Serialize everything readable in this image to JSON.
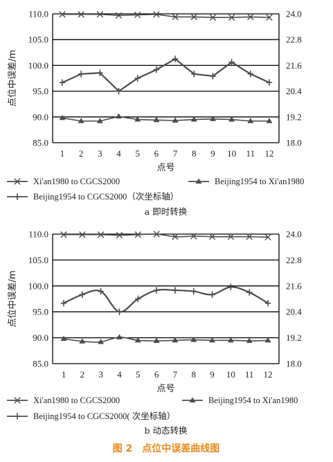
{
  "colors": {
    "line": "#4a4a4a",
    "grid": "#000000",
    "caption": "#e8891d"
  },
  "chart_data": [
    {
      "type": "line",
      "subtitle": "a 即时转换",
      "xlabel": "点号",
      "ylabel": "点位中误差/m",
      "categories": [
        "1",
        "2",
        "3",
        "4",
        "5",
        "6",
        "7",
        "8",
        "9",
        "10",
        "11",
        "12"
      ],
      "ylim": [
        85.0,
        110.0
      ],
      "y2lim": [
        18.0,
        24.0
      ],
      "yticks": [
        "85.0",
        "90.0",
        "95.0",
        "100.0",
        "105.0",
        "110.0"
      ],
      "y2ticks": [
        "18.0",
        "19.2",
        "20.4",
        "21.6",
        "22.8",
        "24.0"
      ],
      "grid": "horizontal",
      "smooth": false,
      "series": [
        {
          "name": "Xi'an1980 to CGCS2000",
          "marker": "x",
          "axis": "left",
          "values": [
            109.9,
            109.9,
            109.9,
            109.7,
            109.8,
            109.9,
            109.4,
            109.4,
            109.3,
            109.3,
            109.4,
            109.3
          ]
        },
        {
          "name": "Beijing1954 to Xi'an1980",
          "marker": "triangle",
          "axis": "left",
          "values": [
            89.8,
            89.2,
            89.2,
            90.1,
            89.5,
            89.4,
            89.3,
            89.5,
            89.6,
            89.5,
            89.2,
            89.2
          ]
        },
        {
          "name": "Beijing1954 to CGCS2000（次坐标轴）",
          "marker": "plus",
          "axis": "right",
          "values": [
            20.8,
            21.2,
            21.25,
            20.4,
            21.0,
            21.4,
            21.9,
            21.2,
            21.1,
            21.75,
            21.2,
            20.8
          ]
        }
      ]
    },
    {
      "type": "line",
      "subtitle": "b 动态转换",
      "xlabel": "点号",
      "ylabel": "点位中误差/m",
      "categories": [
        "1",
        "2",
        "3",
        "4",
        "5",
        "6",
        "7",
        "8",
        "9",
        "10",
        "11",
        "12"
      ],
      "ylim": [
        85.0,
        110.0
      ],
      "y2lim": [
        18.0,
        24.0
      ],
      "yticks": [
        "85.0",
        "90.0",
        "95.0",
        "100.0",
        "105.0",
        "110.0"
      ],
      "y2ticks": [
        "18.0",
        "19.2",
        "20.4",
        "21.6",
        "22.8",
        "24.0"
      ],
      "grid": "horizontal",
      "smooth": true,
      "series": [
        {
          "name": "Xi'an1980 to CGCS2000",
          "marker": "x",
          "axis": "left",
          "values": [
            109.9,
            109.9,
            109.9,
            109.8,
            109.9,
            110.0,
            109.5,
            109.6,
            109.5,
            109.5,
            109.5,
            109.4
          ]
        },
        {
          "name": "Beijing1954 to Xi'an1980",
          "marker": "triangle",
          "axis": "left",
          "values": [
            89.8,
            89.3,
            89.2,
            90.1,
            89.5,
            89.4,
            89.5,
            89.6,
            89.5,
            89.5,
            89.4,
            89.5
          ]
        },
        {
          "name": "Beijing1954 to CGCS2000( 次坐标轴）",
          "marker": "plus",
          "axis": "right",
          "values": [
            20.8,
            21.2,
            21.35,
            20.4,
            21.0,
            21.4,
            21.4,
            21.35,
            21.2,
            21.55,
            21.3,
            20.8
          ]
        }
      ]
    }
  ],
  "figure_caption": "图 2　点位中误差曲线图"
}
